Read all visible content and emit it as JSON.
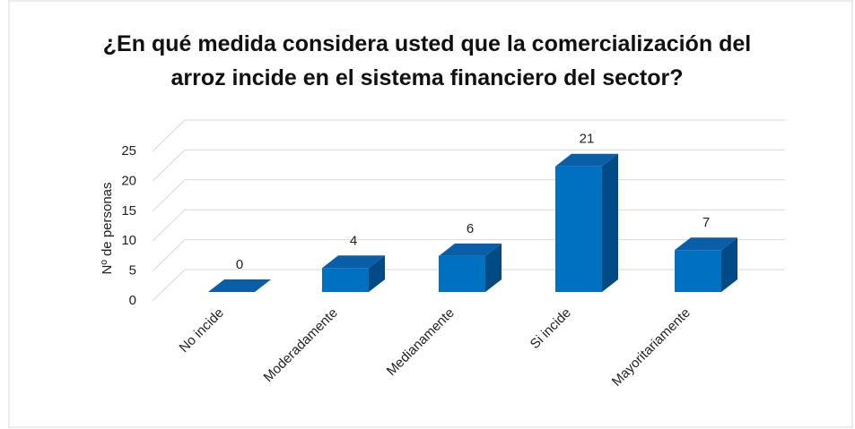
{
  "chart_data": {
    "type": "bar3d",
    "title": "¿En qué medida considera usted que la comercialización del arroz incide en el sistema financiero del sector?",
    "ylabel": "Nº de personas",
    "categories": [
      "No incide",
      "Moderadamente",
      "Medianamente",
      "Si incide",
      "Mayoritariamente"
    ],
    "values": [
      0,
      4,
      6,
      21,
      7
    ],
    "color": "#0070c0",
    "ylim": [
      0,
      25
    ],
    "yticks": [
      0,
      5,
      10,
      15,
      20,
      25
    ],
    "grid": true
  }
}
